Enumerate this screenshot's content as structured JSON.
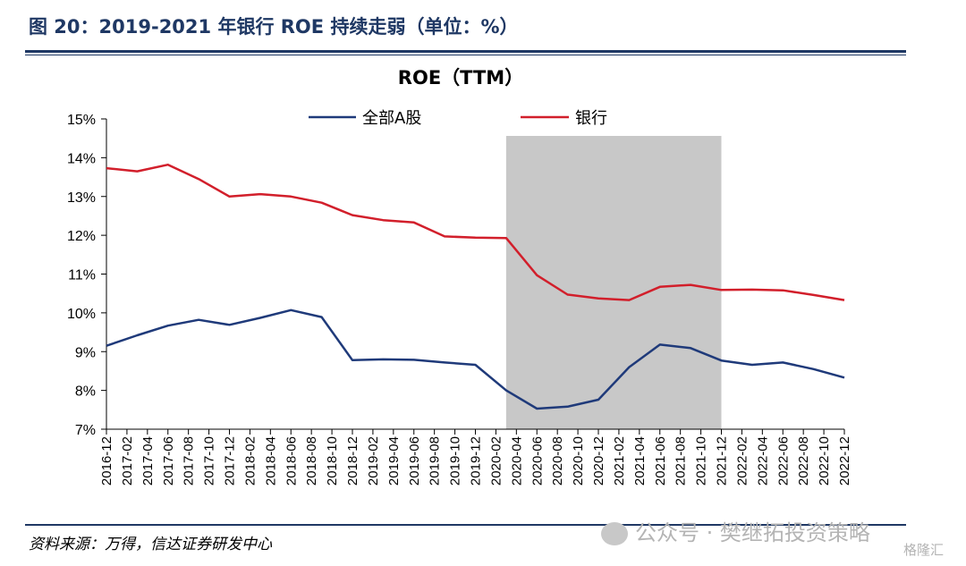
{
  "figure": {
    "title": "图 20：2019-2021 年银行 ROE 持续走弱（单位：%）",
    "source": "资料来源：万得，信达证券研发中心",
    "watermark": "公众号 · 樊继拓投资策略",
    "corner_logo": "格隆汇"
  },
  "colors": {
    "rule": "#1f3864",
    "series_all": "#1f3a7a",
    "series_bank": "#d21f2b",
    "shade": "#c8c8c8"
  },
  "chart_data": {
    "type": "line",
    "title": "ROE（TTM）",
    "xlabel": "",
    "ylabel": "",
    "ylim": [
      7,
      15
    ],
    "yticks": [
      "7%",
      "8%",
      "9%",
      "10%",
      "11%",
      "12%",
      "13%",
      "14%",
      "15%"
    ],
    "grid": false,
    "legend_position": "top",
    "categories": [
      "2016-12",
      "2017-02",
      "2017-04",
      "2017-06",
      "2017-08",
      "2017-10",
      "2017-12",
      "2018-02",
      "2018-04",
      "2018-06",
      "2018-08",
      "2018-10",
      "2018-12",
      "2019-02",
      "2019-04",
      "2019-06",
      "2019-08",
      "2019-10",
      "2019-12",
      "2020-02",
      "2020-04",
      "2020-06",
      "2020-08",
      "2020-10",
      "2020-12",
      "2021-02",
      "2021-04",
      "2021-06",
      "2021-08",
      "2021-10",
      "2021-12",
      "2022-02",
      "2022-04",
      "2022-06",
      "2022-08",
      "2022-10",
      "2022-12"
    ],
    "series": [
      {
        "name": "全部A股",
        "points": [
          [
            "2016-12",
            9.15
          ],
          [
            "2017-03",
            9.42
          ],
          [
            "2017-06",
            9.67
          ],
          [
            "2017-09",
            9.82
          ],
          [
            "2017-12",
            9.69
          ],
          [
            "2018-03",
            9.87
          ],
          [
            "2018-06",
            10.07
          ],
          [
            "2018-09",
            9.89
          ],
          [
            "2018-12",
            8.78
          ],
          [
            "2019-03",
            8.8
          ],
          [
            "2019-06",
            8.79
          ],
          [
            "2019-09",
            8.72
          ],
          [
            "2019-12",
            8.66
          ],
          [
            "2020-03",
            8.0
          ],
          [
            "2020-06",
            7.53
          ],
          [
            "2020-09",
            7.58
          ],
          [
            "2020-12",
            7.76
          ],
          [
            "2021-03",
            8.6
          ],
          [
            "2021-06",
            9.18
          ],
          [
            "2021-09",
            9.09
          ],
          [
            "2021-12",
            8.77
          ],
          [
            "2022-03",
            8.66
          ],
          [
            "2022-06",
            8.72
          ],
          [
            "2022-09",
            8.55
          ],
          [
            "2022-12",
            8.33
          ]
        ]
      },
      {
        "name": "银行",
        "points": [
          [
            "2016-12",
            13.73
          ],
          [
            "2017-03",
            13.65
          ],
          [
            "2017-06",
            13.82
          ],
          [
            "2017-09",
            13.45
          ],
          [
            "2017-12",
            13.0
          ],
          [
            "2018-03",
            13.06
          ],
          [
            "2018-06",
            13.0
          ],
          [
            "2018-09",
            12.84
          ],
          [
            "2018-12",
            12.52
          ],
          [
            "2019-03",
            12.39
          ],
          [
            "2019-06",
            12.33
          ],
          [
            "2019-09",
            11.97
          ],
          [
            "2019-12",
            11.94
          ],
          [
            "2020-03",
            11.93
          ],
          [
            "2020-06",
            10.97
          ],
          [
            "2020-09",
            10.47
          ],
          [
            "2020-12",
            10.37
          ],
          [
            "2021-03",
            10.33
          ],
          [
            "2021-06",
            10.67
          ],
          [
            "2021-09",
            10.72
          ],
          [
            "2021-12",
            10.59
          ],
          [
            "2022-03",
            10.6
          ],
          [
            "2022-06",
            10.58
          ],
          [
            "2022-09",
            10.46
          ],
          [
            "2022-12",
            10.33
          ]
        ]
      }
    ],
    "shaded_range": [
      "2020-03",
      "2021-12"
    ]
  }
}
